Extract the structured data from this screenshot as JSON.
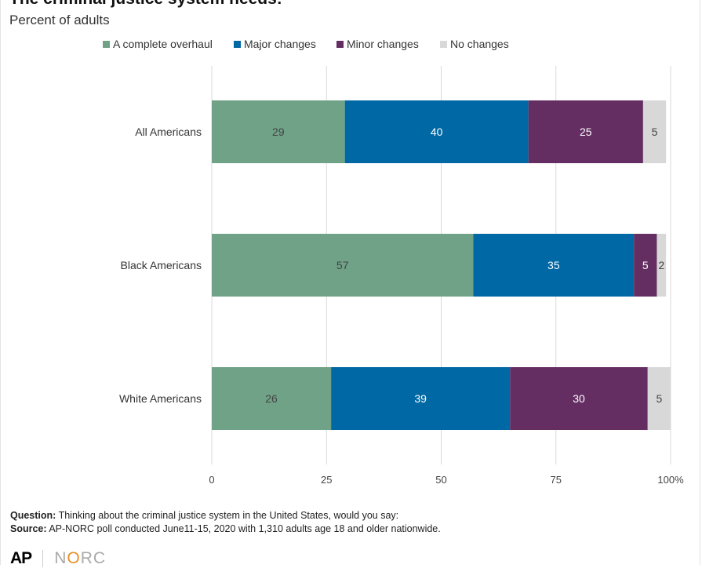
{
  "title": "The criminal justice system needs:",
  "subtitle": "Percent of adults",
  "chart_data": {
    "type": "bar",
    "orientation": "horizontal",
    "stacked": true,
    "categories": [
      "All Americans",
      "Black Americans",
      "White Americans"
    ],
    "series": [
      {
        "name": "A complete overhaul",
        "color": "#6fa287",
        "values": [
          29,
          57,
          26
        ]
      },
      {
        "name": "Major changes",
        "color": "#0068a5",
        "values": [
          40,
          35,
          39
        ]
      },
      {
        "name": "Minor changes",
        "color": "#652e63",
        "values": [
          25,
          5,
          30
        ]
      },
      {
        "name": "No changes",
        "color": "#d8d8d8",
        "values": [
          5,
          2,
          5
        ]
      }
    ],
    "x_ticks": [
      "0",
      "25",
      "50",
      "75",
      "100%"
    ],
    "xlim": [
      0,
      100
    ],
    "grid": true,
    "legend_position": "top"
  },
  "footer": {
    "question_label": "Question:",
    "question_text": " Thinking about the criminal justice system in the United States, would you say:",
    "source_label": "Source:",
    "source_text": " AP-NORC poll conducted June11-15, 2020 with 1,310 adults age 18 and older nationwide."
  },
  "logos": {
    "ap": "AP",
    "norc_prefix": "N",
    "norc_o": "O",
    "norc_suffix": "RC"
  }
}
